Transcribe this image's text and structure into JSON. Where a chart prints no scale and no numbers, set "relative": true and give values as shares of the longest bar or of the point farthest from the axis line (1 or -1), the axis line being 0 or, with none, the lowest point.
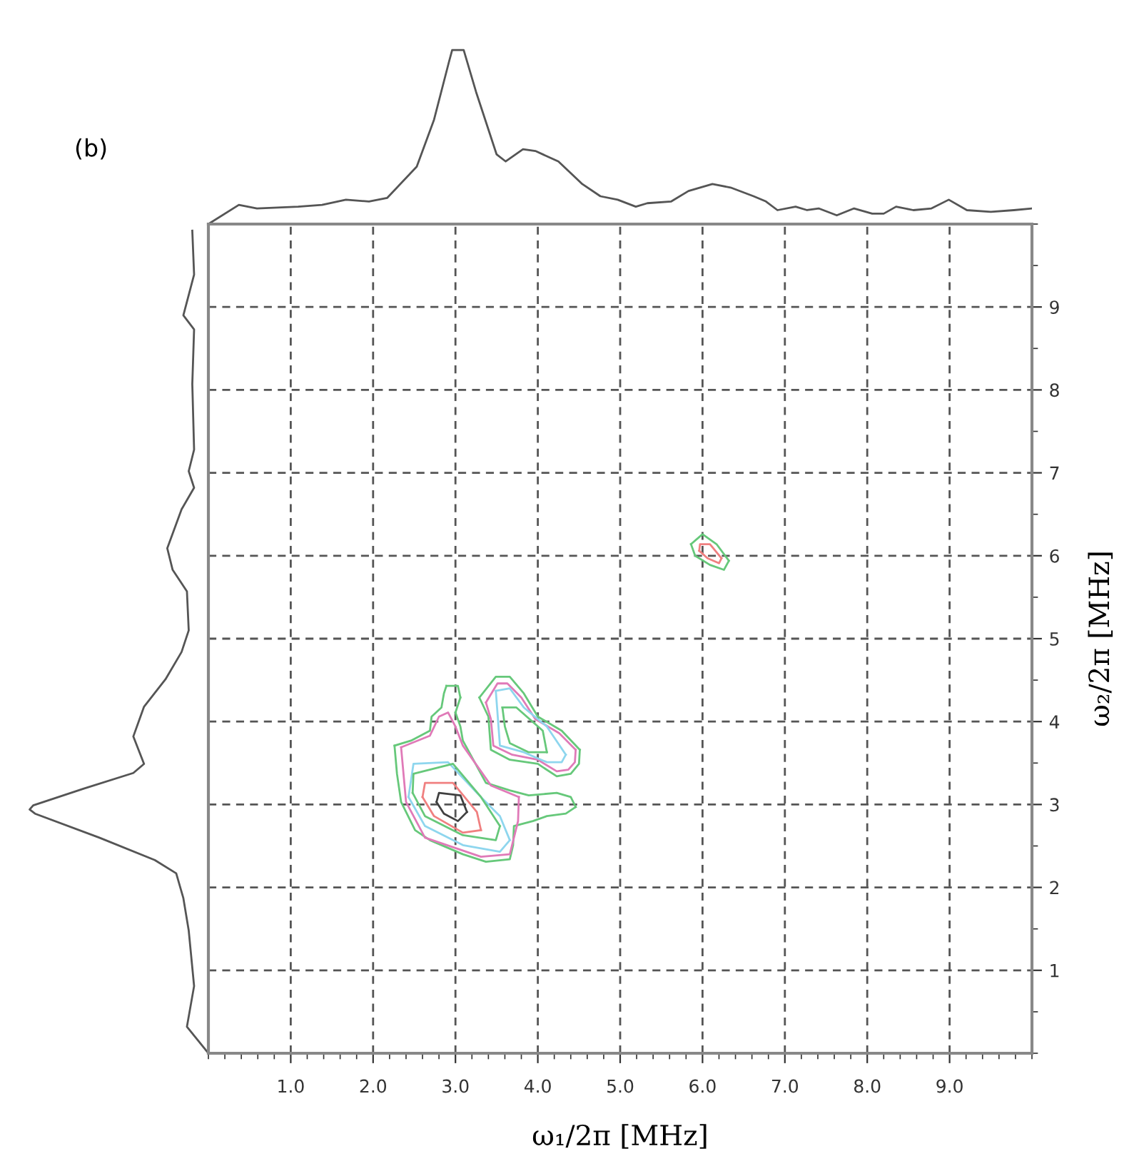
{
  "chart_data": [
    {
      "type": "line",
      "relative": true,
      "xlim": [
        0,
        10
      ],
      "tick_labels": false,
      "grid": false,
      "annotations": [
        "(b)"
      ],
      "series": [
        {
          "color": "#555555",
          "x": [
            0.0,
            0.37,
            0.59,
            1.09,
            1.38,
            1.67,
            1.95,
            2.17,
            2.53,
            2.74,
            2.92,
            2.96,
            3.1,
            3.25,
            3.5,
            3.61,
            3.82,
            3.97,
            4.25,
            4.54,
            4.76,
            4.97,
            5.19,
            5.33,
            5.62,
            5.83,
            6.12,
            6.34,
            6.62,
            6.77,
            6.91,
            7.13,
            7.27,
            7.41,
            7.63,
            7.84,
            8.06,
            8.2,
            8.35,
            8.56,
            8.78,
            8.99,
            9.21,
            9.5,
            9.78,
            10.0
          ],
          "values": [
            0.0,
            0.11,
            0.09,
            0.1,
            0.11,
            0.14,
            0.13,
            0.15,
            0.33,
            0.6,
            0.93,
            1.0,
            1.0,
            0.76,
            0.4,
            0.36,
            0.43,
            0.42,
            0.36,
            0.23,
            0.16,
            0.14,
            0.1,
            0.12,
            0.13,
            0.19,
            0.23,
            0.21,
            0.16,
            0.13,
            0.08,
            0.1,
            0.08,
            0.09,
            0.05,
            0.09,
            0.06,
            0.06,
            0.1,
            0.08,
            0.09,
            0.14,
            0.08,
            0.07,
            0.08,
            0.09
          ]
        }
      ]
    },
    {
      "type": "line",
      "relative": true,
      "orientation": "horizontal",
      "ylim": [
        0,
        10
      ],
      "tick_labels": false,
      "grid": false,
      "series": [
        {
          "color": "#555555",
          "x": [
            9.92,
            9.39,
            8.9,
            8.73,
            8.07,
            7.28,
            7.02,
            6.82,
            6.56,
            6.09,
            5.83,
            5.57,
            5.1,
            4.84,
            4.51,
            4.18,
            3.82,
            3.49,
            3.38,
            3.19,
            2.99,
            2.94,
            2.89,
            2.6,
            2.33,
            2.17,
            1.87,
            1.48,
            0.81,
            0.32,
            0.0
          ],
          "values": [
            -0.09,
            -0.08,
            -0.14,
            -0.08,
            -0.09,
            -0.08,
            -0.11,
            -0.08,
            -0.15,
            -0.23,
            -0.2,
            -0.12,
            -0.11,
            -0.15,
            -0.24,
            -0.36,
            -0.42,
            -0.36,
            -0.42,
            -0.7,
            -0.98,
            -1.0,
            -0.97,
            -0.61,
            -0.3,
            -0.18,
            -0.14,
            -0.11,
            -0.08,
            -0.12,
            0.0
          ]
        }
      ]
    },
    {
      "type": "line",
      "xlabel": "ω₁/2π [MHz]",
      "ylabel": "ω₂/2π [MHz]",
      "xlim": [
        0,
        10
      ],
      "ylim": [
        0,
        10
      ],
      "xticks": [
        {
          "value": 1,
          "label": "1.0"
        },
        {
          "value": 2,
          "label": "2.0"
        },
        {
          "value": 3,
          "label": "3.0"
        },
        {
          "value": 4,
          "label": "4.0"
        },
        {
          "value": 5,
          "label": "5.0"
        },
        {
          "value": 6,
          "label": "6.0"
        },
        {
          "value": 7,
          "label": "7.0"
        },
        {
          "value": 8,
          "label": "8.0"
        },
        {
          "value": 9,
          "label": "9.0"
        }
      ],
      "yticks": [
        1,
        2,
        3,
        4,
        5,
        6,
        7,
        8,
        9
      ],
      "grid": true,
      "line_style": "solid",
      "series": [
        {
          "color": "#66c87a",
          "x": [
            2.89,
            3.03,
            3.06
          ],
          "values": [
            4.43,
            4.43,
            4.29
          ]
        },
        {
          "color": "#66c87a",
          "x": [
            3.06,
            3.0
          ],
          "values": [
            4.29,
            4.11
          ]
        },
        {
          "color": "#66c87a",
          "x": [
            3.0,
            3.06,
            3.09,
            3.37,
            3.66,
            3.89,
            4.23,
            4.4,
            4.46
          ],
          "values": [
            4.11,
            3.94,
            3.77,
            3.26,
            3.17,
            3.11,
            3.14,
            3.09,
            2.97
          ]
        },
        {
          "color": "#66c87a",
          "x": [
            4.46,
            4.34,
            4.11,
            3.94,
            3.71,
            3.7,
            3.66,
            3.37,
            3.09,
            2.69,
            2.51,
            2.34,
            2.29,
            2.26
          ],
          "values": [
            2.97,
            2.89,
            2.86,
            2.8,
            2.74,
            2.51,
            2.34,
            2.31,
            2.4,
            2.57,
            2.69,
            3.03,
            3.37,
            3.71
          ]
        },
        {
          "color": "#66c87a",
          "x": [
            2.26,
            2.46,
            2.69,
            2.71,
            2.83,
            2.86,
            2.89
          ],
          "values": [
            3.71,
            3.77,
            3.89,
            4.06,
            4.17,
            4.34,
            4.43
          ]
        },
        {
          "color": "#e07ab8",
          "x": [
            2.34,
            2.69,
            2.8,
            2.91,
            3.0,
            3.09,
            3.43,
            3.77
          ],
          "values": [
            3.69,
            3.83,
            4.06,
            4.11,
            3.94,
            3.71,
            3.23,
            3.09
          ]
        },
        {
          "color": "#e07ab8",
          "x": [
            3.77,
            3.76,
            3.66,
            3.31,
            2.63,
            2.4,
            2.34
          ],
          "values": [
            3.09,
            2.8,
            2.4,
            2.37,
            2.6,
            3.03,
            3.69
          ]
        },
        {
          "color": "#8ed6ee",
          "x": [
            2.43,
            2.49,
            2.91,
            3.26,
            3.54,
            3.66
          ],
          "values": [
            3.09,
            3.49,
            3.51,
            3.14,
            2.86,
            2.57
          ]
        },
        {
          "color": "#8ed6ee",
          "x": [
            3.66,
            3.54,
            3.09,
            2.63,
            2.43
          ],
          "values": [
            2.57,
            2.43,
            2.51,
            2.74,
            3.09
          ]
        },
        {
          "color": "#66c87a",
          "x": [
            2.48,
            2.49,
            2.97,
            3.31,
            3.54
          ],
          "values": [
            3.14,
            3.37,
            3.49,
            3.09,
            2.74
          ]
        },
        {
          "color": "#66c87a",
          "x": [
            3.54,
            3.49,
            3.09,
            2.63,
            2.48
          ],
          "values": [
            2.74,
            2.57,
            2.63,
            2.86,
            3.14
          ]
        },
        {
          "color": "#f08080",
          "x": [
            2.6,
            2.63,
            2.97,
            3.26,
            3.31
          ],
          "values": [
            3.09,
            3.26,
            3.26,
            2.91,
            2.69
          ]
        },
        {
          "color": "#f08080",
          "x": [
            3.31,
            3.09,
            2.74,
            2.6
          ],
          "values": [
            2.69,
            2.66,
            2.86,
            3.09
          ]
        },
        {
          "color": "#404040",
          "x": [
            2.77,
            2.8,
            3.06,
            3.14
          ],
          "values": [
            3.03,
            3.14,
            3.11,
            2.91
          ]
        },
        {
          "color": "#404040",
          "x": [
            3.14,
            3.03,
            2.86,
            2.77
          ],
          "values": [
            2.91,
            2.8,
            2.89,
            3.03
          ]
        },
        {
          "color": "#66c87a",
          "x": [
            3.29,
            3.49,
            3.66,
            3.83,
            4.0,
            4.29,
            4.51
          ],
          "values": [
            4.29,
            4.54,
            4.54,
            4.34,
            4.06,
            3.89,
            3.66
          ]
        },
        {
          "color": "#66c87a",
          "x": [
            4.51,
            4.5,
            4.4,
            4.23,
            4.0,
            3.66,
            3.43,
            3.4,
            3.29
          ],
          "values": [
            3.66,
            3.49,
            3.37,
            3.34,
            3.49,
            3.54,
            3.66,
            4.06,
            4.29
          ]
        },
        {
          "color": "#e07ab8",
          "x": [
            3.37,
            3.51,
            3.63,
            3.8,
            3.97,
            4.26,
            4.46
          ],
          "values": [
            4.23,
            4.46,
            4.46,
            4.29,
            4.03,
            3.86,
            3.66
          ]
        },
        {
          "color": "#e07ab8",
          "x": [
            4.46,
            4.45,
            4.37,
            4.23,
            4.0,
            3.69,
            3.46,
            3.43,
            3.37
          ],
          "values": [
            3.66,
            3.51,
            3.42,
            3.4,
            3.54,
            3.6,
            3.71,
            4.03,
            4.23
          ]
        },
        {
          "color": "#8ed6ee",
          "x": [
            3.49,
            3.66,
            3.83,
            4.11,
            4.34
          ],
          "values": [
            4.37,
            4.4,
            4.17,
            3.94,
            3.6
          ]
        },
        {
          "color": "#8ed6ee",
          "x": [
            4.34,
            4.29,
            4.11,
            3.83,
            3.54,
            3.49
          ],
          "values": [
            3.6,
            3.51,
            3.51,
            3.63,
            3.71,
            4.37
          ]
        },
        {
          "color": "#66c87a",
          "x": [
            3.57,
            3.74,
            4.06,
            4.11
          ],
          "values": [
            4.17,
            4.17,
            3.89,
            3.63
          ]
        },
        {
          "color": "#66c87a",
          "x": [
            4.11,
            3.89,
            3.66,
            3.6,
            3.57
          ],
          "values": [
            3.63,
            3.63,
            3.74,
            3.94,
            4.17
          ]
        },
        {
          "color": "#66c87a",
          "x": [
            5.86,
            6.0,
            6.17,
            6.32
          ],
          "values": [
            6.14,
            6.26,
            6.14,
            5.94
          ]
        },
        {
          "color": "#66c87a",
          "x": [
            6.32,
            6.26,
            6.09,
            5.91,
            5.86
          ],
          "values": [
            5.94,
            5.83,
            5.89,
            6.0,
            6.14
          ]
        },
        {
          "color": "#f08080",
          "x": [
            5.96,
            5.97,
            6.09,
            6.23
          ],
          "values": [
            6.06,
            6.14,
            6.14,
            5.97
          ]
        },
        {
          "color": "#f08080",
          "x": [
            6.23,
            6.2,
            6.06,
            5.96
          ],
          "values": [
            5.97,
            5.91,
            5.97,
            6.06
          ]
        }
      ]
    }
  ]
}
